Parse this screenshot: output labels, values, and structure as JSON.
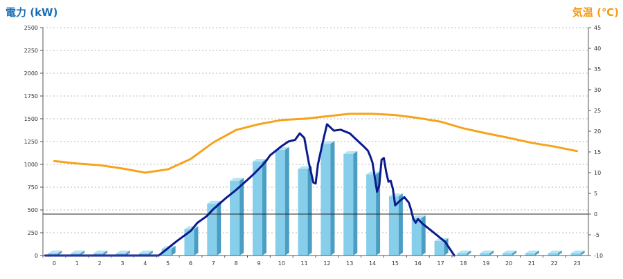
{
  "chart_data": {
    "type": "bar",
    "ylabel_left": "電力 (kW)",
    "ylabel_right": "気温 (℃)",
    "categories": [
      "0",
      "1",
      "2",
      "3",
      "4",
      "5",
      "6",
      "7",
      "8",
      "9",
      "10",
      "11",
      "12",
      "13",
      "14",
      "15",
      "16",
      "17",
      "18",
      "19",
      "20",
      "21",
      "22",
      "23"
    ],
    "ylim_left": [
      0,
      2500
    ],
    "yticks_left": [
      0,
      250,
      500,
      750,
      1000,
      1250,
      1500,
      1750,
      2000,
      2250,
      2500
    ],
    "ylim_right": [
      -10,
      45
    ],
    "yticks_right": [
      -10,
      -5,
      0,
      5,
      10,
      15,
      20,
      25,
      30,
      35,
      40,
      45
    ],
    "grid": true,
    "series": [
      {
        "kind": "bar",
        "axis": "left",
        "color": "#87ceeb",
        "values": [
          25,
          25,
          25,
          25,
          25,
          75,
          290,
          570,
          820,
          1030,
          1160,
          950,
          1225,
          1115,
          890,
          650,
          410,
          160,
          25,
          25,
          25,
          25,
          25,
          25
        ]
      },
      {
        "kind": "line",
        "axis": "right",
        "color": "#f7a21b",
        "values": [
          12.8,
          12.2,
          11.8,
          11.0,
          10.0,
          10.8,
          13.3,
          17.3,
          20.3,
          21.7,
          22.7,
          23.0,
          23.6,
          24.2,
          24.2,
          23.9,
          23.2,
          22.3,
          20.7,
          19.5,
          18.4,
          17.2,
          16.3,
          15.2
        ]
      },
      {
        "kind": "line",
        "axis": "left",
        "color": "#0a1a8c",
        "x": [
          -0.4,
          4.6,
          5.0,
          5.4,
          6.0,
          6.3,
          6.7,
          7.0,
          7.5,
          8.0,
          8.5,
          8.8,
          9.0,
          9.3,
          9.5,
          9.8,
          10.0,
          10.3,
          10.6,
          10.8,
          11.0,
          11.2,
          11.4,
          11.5,
          11.6,
          11.8,
          12.0,
          12.3,
          12.6,
          13.0,
          13.3,
          13.6,
          13.8,
          13.9,
          14.0,
          14.2,
          14.3,
          14.4,
          14.5,
          14.6,
          14.7,
          14.8,
          14.9,
          15.0,
          15.2,
          15.4,
          15.6,
          15.7,
          15.8,
          15.9,
          16.0,
          16.2,
          16.5,
          16.8,
          17.2,
          17.6
        ],
        "values": [
          0,
          0,
          80,
          160,
          270,
          360,
          430,
          510,
          620,
          720,
          830,
          900,
          950,
          1030,
          1100,
          1160,
          1200,
          1250,
          1270,
          1340,
          1290,
          1020,
          800,
          790,
          1000,
          1230,
          1440,
          1370,
          1380,
          1340,
          1270,
          1200,
          1150,
          1090,
          1020,
          700,
          770,
          1050,
          1070,
          920,
          810,
          820,
          730,
          550,
          600,
          640,
          580,
          500,
          400,
          360,
          400,
          350,
          290,
          230,
          150,
          0
        ]
      }
    ]
  }
}
